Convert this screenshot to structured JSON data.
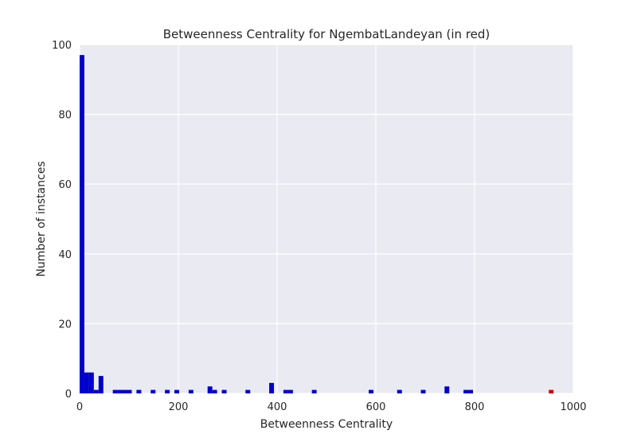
{
  "chart_data": {
    "type": "bar",
    "title": "Betweenness Centrality for NgembatLandeyan (in red)",
    "xlabel": "Betweenness Centrality",
    "ylabel": "Number of instances",
    "xlim": [
      0,
      1000
    ],
    "ylim": [
      0,
      100
    ],
    "xticks": [
      "0",
      "200",
      "400",
      "600",
      "800",
      "1000"
    ],
    "yticks": [
      "0",
      "20",
      "40",
      "60",
      "80",
      "100"
    ],
    "grid": true,
    "background": "#eaeaf2",
    "bar_color": "#0000cc",
    "highlight_color": "#cc0000",
    "bin_width": 9.6,
    "bins": [
      {
        "x": 0,
        "count": 97
      },
      {
        "x": 9.6,
        "count": 6
      },
      {
        "x": 19.2,
        "count": 6
      },
      {
        "x": 28.8,
        "count": 1
      },
      {
        "x": 38.4,
        "count": 5
      },
      {
        "x": 67.2,
        "count": 1
      },
      {
        "x": 76.8,
        "count": 1
      },
      {
        "x": 86.4,
        "count": 1
      },
      {
        "x": 96.0,
        "count": 1
      },
      {
        "x": 115.2,
        "count": 1
      },
      {
        "x": 144.0,
        "count": 1
      },
      {
        "x": 172.8,
        "count": 1
      },
      {
        "x": 192.0,
        "count": 1
      },
      {
        "x": 220.8,
        "count": 1
      },
      {
        "x": 259.2,
        "count": 2
      },
      {
        "x": 268.8,
        "count": 1
      },
      {
        "x": 288.0,
        "count": 1
      },
      {
        "x": 336.0,
        "count": 1
      },
      {
        "x": 384.0,
        "count": 3
      },
      {
        "x": 412.8,
        "count": 1
      },
      {
        "x": 422.4,
        "count": 1
      },
      {
        "x": 470.4,
        "count": 1
      },
      {
        "x": 585.6,
        "count": 1
      },
      {
        "x": 643.2,
        "count": 1
      },
      {
        "x": 691.2,
        "count": 1
      },
      {
        "x": 739.2,
        "count": 2
      },
      {
        "x": 777.6,
        "count": 1
      },
      {
        "x": 787.2,
        "count": 1
      },
      {
        "x": 950.4,
        "count": 1,
        "highlight": true
      }
    ]
  }
}
